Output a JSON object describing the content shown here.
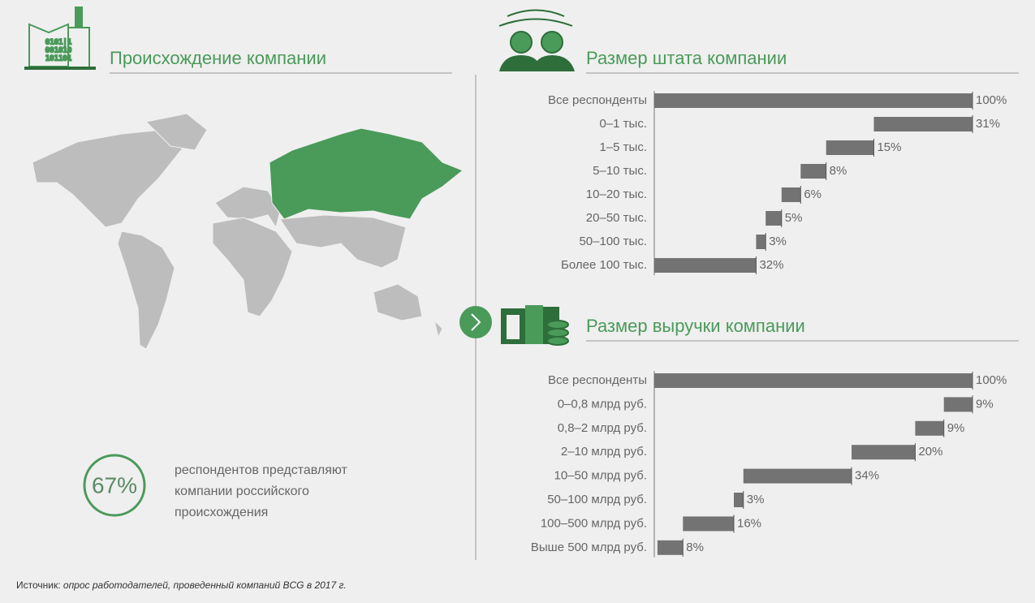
{
  "origin": {
    "title": "Происхождение компании",
    "stat": "67%",
    "description": [
      "респондентов представляют",
      "компании российского",
      "происхождения"
    ]
  },
  "chart_data": [
    {
      "type": "waterfall",
      "title": "Размер штата компании",
      "categories": [
        "Все респонденты",
        "0–1 тыс.",
        "1–5 тыс.",
        "5–10 тыс.",
        "10–20 тыс.",
        "20–50 тыс.",
        "50–100 тыс.",
        "Более 100 тыс."
      ],
      "values": [
        100,
        31,
        15,
        8,
        6,
        5,
        3,
        32
      ],
      "value_labels": [
        "100%",
        "31%",
        "15%",
        "8%",
        "6%",
        "5%",
        "3%",
        "32%"
      ],
      "color": "#737373",
      "xlim": [
        0,
        100
      ]
    },
    {
      "type": "waterfall",
      "title": "Размер выручки компании",
      "categories": [
        "Все респонденты",
        "0–0,8 млрд руб.",
        "0,8–2 млрд руб.",
        "2–10 млрд руб.",
        "10–50 млрд руб.",
        "50–100 млрд руб.",
        "100–500 млрд руб.",
        "Выше 500 млрд руб."
      ],
      "values": [
        100,
        9,
        9,
        20,
        34,
        3,
        16,
        8
      ],
      "value_labels": [
        "100%",
        "9%",
        "9%",
        "20%",
        "34%",
        "3%",
        "16%",
        "8%"
      ],
      "color": "#737373",
      "xlim": [
        0,
        100
      ]
    }
  ],
  "source": {
    "label": "Источник:",
    "text": "опрос работодателей, проведенный компаний BCG в 2017 г."
  }
}
